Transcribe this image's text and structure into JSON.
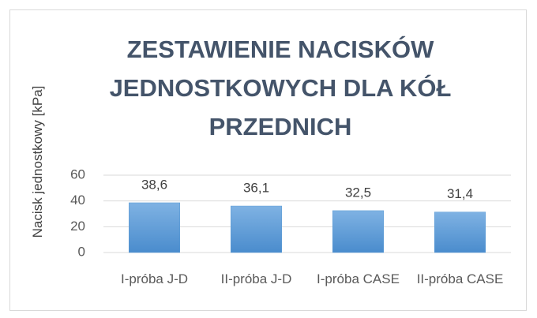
{
  "chart_data": {
    "type": "bar",
    "title": "ZESTAWIENIE NACISKÓW JEDNOSTKOWYCH DLA KÓŁ PRZEDNICH",
    "y_label": "Nacisk jednostkowy [kPa]",
    "categories": [
      "I-próba J-D",
      "II-próba J-D",
      "I-próba CASE",
      "II-próba CASE"
    ],
    "values": [
      38.6,
      36.1,
      32.5,
      31.4
    ],
    "value_labels": [
      "38,6",
      "36,1",
      "32,5",
      "31,4"
    ],
    "color": "#5b9bd5",
    "ylim": [
      0,
      60
    ],
    "yticks": [
      0,
      20,
      40,
      60
    ],
    "grid": true
  }
}
